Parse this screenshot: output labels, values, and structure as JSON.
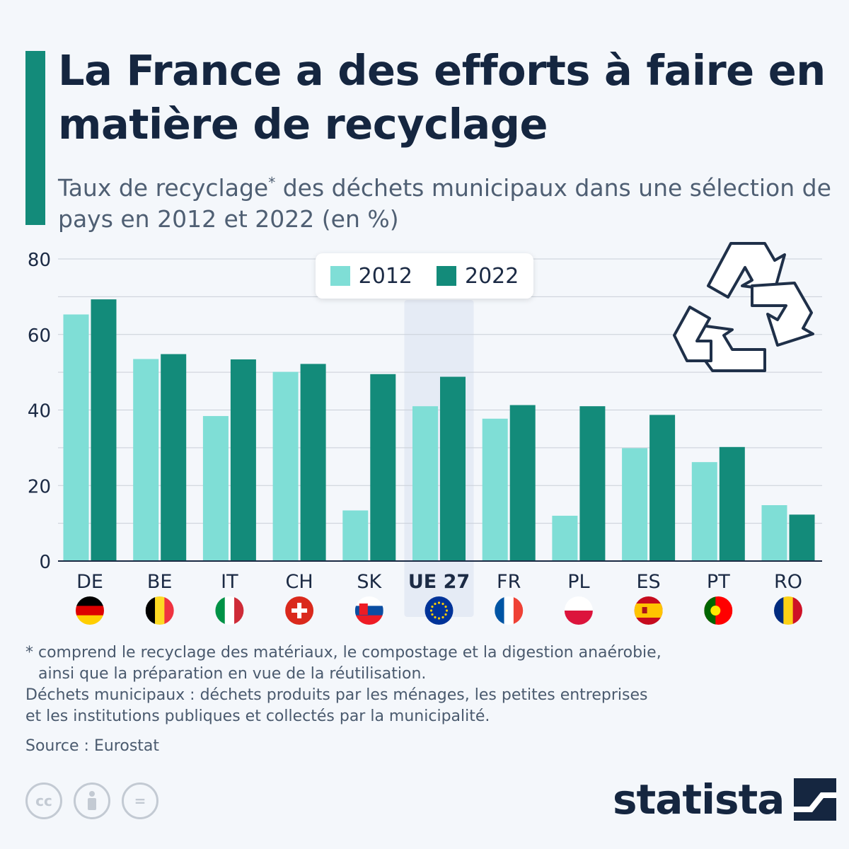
{
  "header": {
    "title": "La France a des efforts à faire en matière de recyclage",
    "subtitle_part1": "Taux de recyclage",
    "subtitle_star": "*",
    "subtitle_part2": " des déchets municipaux dans une sélection de pays en 2012 et 2022 (en %)"
  },
  "legend": [
    {
      "label": "2012",
      "color": "#7fded6"
    },
    {
      "label": "2022",
      "color": "#138b7a"
    }
  ],
  "chart_data": {
    "type": "bar",
    "categories": [
      "DE",
      "BE",
      "IT",
      "CH",
      "SK",
      "UE 27",
      "FR",
      "PL",
      "ES",
      "PT",
      "RO"
    ],
    "highlight_category": "UE 27",
    "series": [
      {
        "name": "2012",
        "color": "#7fded6",
        "values": [
          65.3,
          53.5,
          38.4,
          50.1,
          13.4,
          41.0,
          37.7,
          12.0,
          29.9,
          26.2,
          14.8
        ]
      },
      {
        "name": "2022",
        "color": "#138b7a",
        "values": [
          69.3,
          54.8,
          53.4,
          52.2,
          49.5,
          48.8,
          41.3,
          41.0,
          38.7,
          30.2,
          12.3
        ]
      }
    ],
    "ylim": [
      0,
      80
    ],
    "yticks": [
      0,
      20,
      40,
      60,
      80
    ],
    "grid": true,
    "legend_position": "top-center",
    "flags": [
      "flag-de",
      "flag-be",
      "flag-it",
      "flag-ch",
      "flag-sk",
      "flag-eu",
      "flag-fr",
      "flag-pl",
      "flag-es",
      "flag-pt",
      "flag-ro"
    ]
  },
  "decoration": {
    "icon": "recycle-icon"
  },
  "footnotes": {
    "line1": "* comprend le recyclage des matériaux, le compostage et la digestion anaérobie,",
    "line2": "ainsi que la préparation en vue de la réutilisation.",
    "line3": "Déchets municipaux : déchets produits par les ménages, les petites entreprises",
    "line4": "et les institutions publiques et collectés par la municipalité.",
    "source": "Source : Eurostat"
  },
  "license_icons": [
    {
      "name": "cc-icon",
      "text": "cc"
    },
    {
      "name": "attribution-icon",
      "text": ""
    },
    {
      "name": "no-derivatives-icon",
      "text": "="
    }
  ],
  "brand": {
    "name": "statista"
  }
}
